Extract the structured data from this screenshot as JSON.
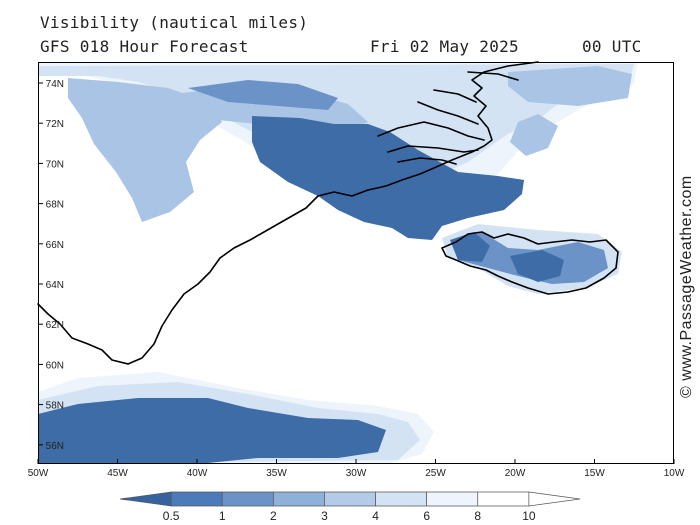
{
  "header": {
    "title": "Visibility (nautical miles)",
    "subtitle": "GFS 018 Hour Forecast",
    "date": "Fri 02 May 2025",
    "time": "00 UTC"
  },
  "credit": "© www.PassageWeather.com",
  "map": {
    "lon_labels": [
      "50W",
      "45W",
      "40W",
      "35W",
      "30W",
      "25W",
      "20W",
      "15W",
      "10W"
    ],
    "lat_labels": [
      "74N",
      "72N",
      "70N",
      "68N",
      "66N",
      "64N",
      "62N",
      "60N",
      "58N",
      "56N"
    ],
    "colors": {
      "dark": "#3e6ca6",
      "mid": "#6b93c8",
      "light": "#a9c4e4",
      "pale": "#d4e3f3",
      "faint": "#eef4fb",
      "coast": "#000000"
    }
  },
  "colorbar": {
    "labels": [
      "0.5",
      "1",
      "2",
      "3",
      "4",
      "6",
      "8",
      "10"
    ],
    "colors": [
      "#36639f",
      "#4b7bb9",
      "#6b93c8",
      "#8fb0d8",
      "#b3cbe8",
      "#d4e3f3",
      "#eef4fb",
      "#ffffff",
      "#ffffff"
    ]
  }
}
